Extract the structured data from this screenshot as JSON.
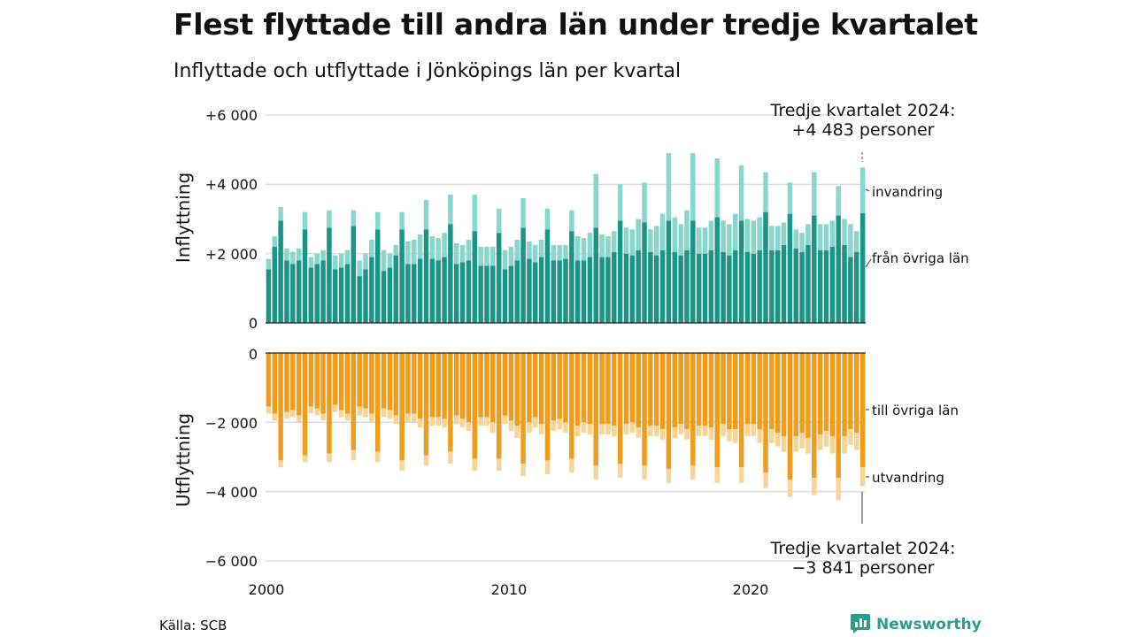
{
  "title": "Flest flyttade till andra län under tredje kvartalet",
  "subtitle": "Inflyttade och utflyttade i Jönköpings län per kvartal",
  "source": "Källa: SCB",
  "brand": {
    "name": "Newsworthy",
    "icon": "bar-chart-bubble-icon",
    "color": "#2a9d8f"
  },
  "colors": {
    "in_domestic": "#1a9485",
    "in_immigration": "#89d6cd",
    "out_domestic": "#f29c1e",
    "out_emigration": "#f8d497",
    "gridline": "#dddddd",
    "baseline": "#222222"
  },
  "chart_data": {
    "type": "bar",
    "stacked": true,
    "diverging": true,
    "x_start": "2000 Q1",
    "x_end": "2024 Q3",
    "x_ticks": [
      "2000",
      "2010",
      "2020"
    ],
    "panels": [
      {
        "name": "Inflyttning",
        "ylabel": "Inflyttning",
        "ylim": [
          0,
          6000
        ],
        "y_ticks": [
          0,
          2000,
          4000,
          6000
        ],
        "y_tick_labels": [
          "0",
          "+2 000",
          "+4 000",
          "+6 000"
        ],
        "series": [
          {
            "name": "från övriga län",
            "values": [
              1550,
              2200,
              2950,
              1800,
              1700,
              1800,
              2700,
              1600,
              1700,
              1800,
              2750,
              1550,
              1600,
              1700,
              2800,
              1350,
              1550,
              1900,
              2700,
              1500,
              1600,
              1950,
              2700,
              1700,
              1700,
              1850,
              2700,
              1850,
              1800,
              1900,
              2850,
              1700,
              1750,
              1800,
              2650,
              1650,
              1650,
              1650,
              2600,
              1550,
              1650,
              1800,
              2750,
              1850,
              1750,
              1900,
              2700,
              1800,
              1800,
              1850,
              2650,
              1800,
              1800,
              1900,
              2750,
              1900,
              1900,
              2050,
              2950,
              2000,
              1950,
              2100,
              2900,
              2050,
              1950,
              2100,
              2950,
              2050,
              1950,
              2100,
              2950,
              2000,
              2000,
              2100,
              3050,
              2050,
              1950,
              2100,
              2950,
              2050,
              2000,
              2100,
              3200,
              2100,
              2100,
              2250,
              3150,
              2150,
              2050,
              2250,
              3100,
              2100,
              2100,
              2200,
              3100,
              2250,
              1900,
              2050,
              3170
            ]
          },
          {
            "name": "invandring",
            "values": [
              300,
              300,
              400,
              350,
              350,
              350,
              500,
              300,
              300,
              300,
              500,
              400,
              400,
              400,
              450,
              450,
              450,
              500,
              500,
              600,
              400,
              300,
              500,
              650,
              700,
              700,
              850,
              650,
              650,
              700,
              850,
              600,
              500,
              600,
              1050,
              550,
              550,
              550,
              700,
              550,
              550,
              600,
              850,
              500,
              500,
              500,
              600,
              450,
              450,
              400,
              600,
              700,
              650,
              700,
              1550,
              650,
              600,
              600,
              1050,
              750,
              750,
              900,
              1150,
              650,
              850,
              1050,
              1950,
              1000,
              900,
              1150,
              1950,
              750,
              750,
              850,
              1700,
              900,
              900,
              1050,
              1600,
              950,
              950,
              950,
              1150,
              700,
              700,
              650,
              900,
              550,
              550,
              600,
              1250,
              750,
              750,
              750,
              850,
              750,
              950,
              600,
              1313
            ]
          }
        ]
      },
      {
        "name": "Utflyttning",
        "ylabel": "Utflyttning",
        "ylim": [
          -6000,
          0
        ],
        "y_ticks": [
          0,
          -2000,
          -4000,
          -6000
        ],
        "y_tick_labels": [
          "0",
          "−2 000",
          "−4 000",
          "−6 000"
        ],
        "series": [
          {
            "name": "till övriga län",
            "values": [
              -1550,
              -1750,
              -3100,
              -1700,
              -1650,
              -1800,
              -2950,
              -1550,
              -1600,
              -1750,
              -2900,
              -1500,
              -1650,
              -1750,
              -2800,
              -1550,
              -1600,
              -1750,
              -2850,
              -1600,
              -1650,
              -1800,
              -3100,
              -1750,
              -1750,
              -1900,
              -2950,
              -1850,
              -1850,
              -1900,
              -2850,
              -1800,
              -1900,
              -2000,
              -3050,
              -1850,
              -1850,
              -2000,
              -3050,
              -1800,
              -1950,
              -2100,
              -3200,
              -2000,
              -1850,
              -2050,
              -3100,
              -1950,
              -1900,
              -2000,
              -3050,
              -2100,
              -2000,
              -2050,
              -3250,
              -2050,
              -2050,
              -2100,
              -3200,
              -2050,
              -2000,
              -2150,
              -3250,
              -2100,
              -2100,
              -2200,
              -3350,
              -2150,
              -2050,
              -2200,
              -3250,
              -2100,
              -2100,
              -2150,
              -3300,
              -2050,
              -2200,
              -2200,
              -3300,
              -2050,
              -2050,
              -2200,
              -3450,
              -2200,
              -2300,
              -2400,
              -3650,
              -2400,
              -2300,
              -2450,
              -3600,
              -2350,
              -2250,
              -2400,
              -3600,
              -2400,
              -2200,
              -2300,
              -3300
            ]
          },
          {
            "name": "utvandring",
            "values": [
              -200,
              -200,
              -200,
              -200,
              -200,
              -200,
              -200,
              -200,
              -200,
              -200,
              -250,
              -200,
              -200,
              -200,
              -300,
              -250,
              -250,
              -250,
              -300,
              -250,
              -250,
              -250,
              -300,
              -250,
              -250,
              -250,
              -300,
              -250,
              -250,
              -250,
              -350,
              -250,
              -250,
              -250,
              -350,
              -250,
              -250,
              -300,
              -350,
              -250,
              -300,
              -350,
              -350,
              -300,
              -300,
              -300,
              -400,
              -300,
              -300,
              -300,
              -400,
              -300,
              -300,
              -300,
              -400,
              -300,
              -300,
              -300,
              -400,
              -300,
              -300,
              -300,
              -400,
              -300,
              -300,
              -300,
              -400,
              -300,
              -300,
              -300,
              -400,
              -300,
              -300,
              -350,
              -450,
              -350,
              -350,
              -400,
              -450,
              -350,
              -350,
              -400,
              -450,
              -400,
              -400,
              -450,
              -500,
              -450,
              -450,
              -450,
              -500,
              -450,
              -450,
              -500,
              -650,
              -500,
              -450,
              -500,
              -541
            ]
          }
        ]
      }
    ],
    "annotations": [
      {
        "panel": "Inflyttning",
        "text_lines": [
          "Tredje kvartalet 2024:",
          "+4 483 personer"
        ]
      },
      {
        "panel": "Utflyttning",
        "text_lines": [
          "Tredje kvartalet 2024:",
          "−3 841 personer"
        ]
      }
    ],
    "series_labels": [
      "invandring",
      "från övriga län",
      "till övriga län",
      "utvandring"
    ]
  }
}
